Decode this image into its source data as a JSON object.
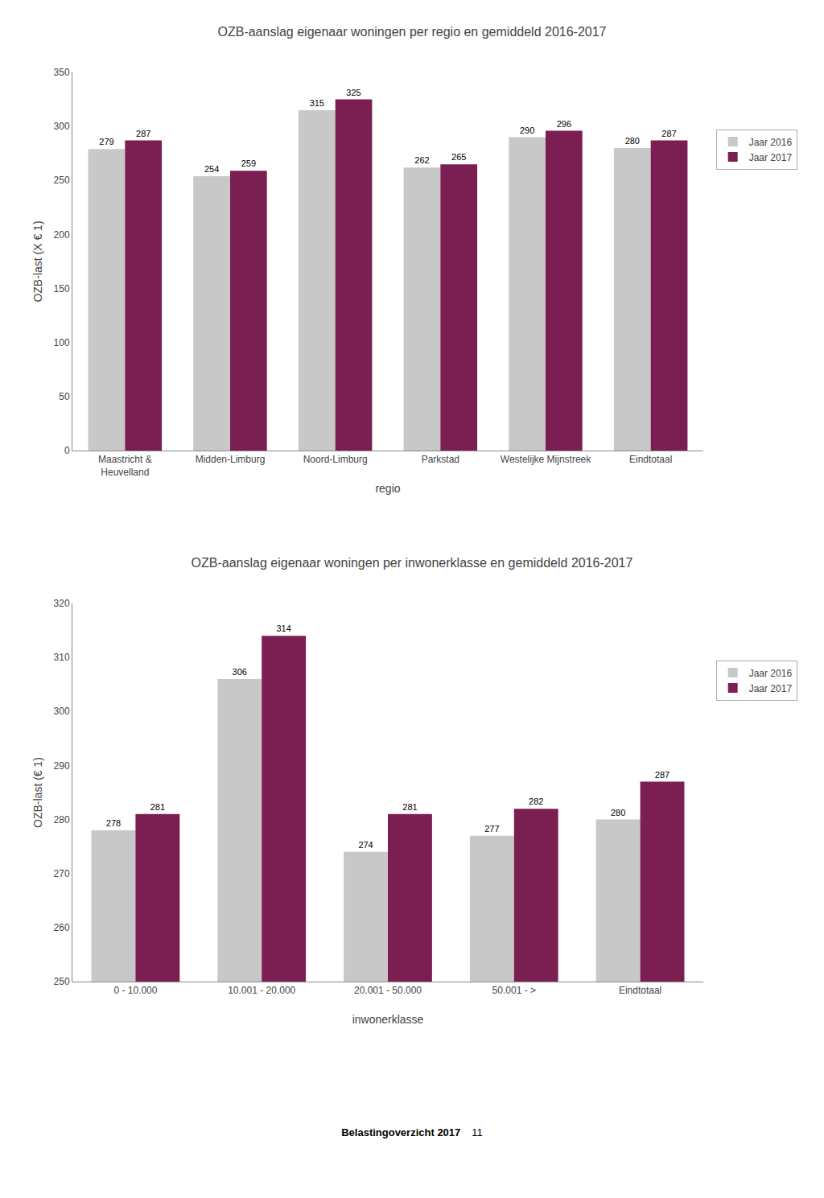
{
  "chart_data": [
    {
      "type": "bar",
      "title": "OZB-aanslag eigenaar woningen per regio en gemiddeld 2016-2017",
      "categories": [
        "Maastricht &\nHeuvelland",
        "Midden-Limburg",
        "Noord-Limburg",
        "Parkstad",
        "Westelijke Mijnstreek",
        "Eindtotaal"
      ],
      "series": [
        {
          "name": "Jaar 2016",
          "color": "#c8c8c8",
          "values": [
            279,
            254,
            315,
            262,
            290,
            280
          ]
        },
        {
          "name": "Jaar 2017",
          "color": "#7b1f52",
          "values": [
            287,
            259,
            325,
            265,
            296,
            287
          ]
        }
      ],
      "xlabel": "regio",
      "ylabel": "OZB-last (X € 1)",
      "ylim": [
        0,
        350
      ],
      "yticks": [
        0,
        50,
        100,
        150,
        200,
        250,
        300,
        350
      ],
      "grid": false,
      "legend": "right",
      "data_labels": true
    },
    {
      "type": "bar",
      "title": "OZB-aanslag eigenaar woningen per inwonerklasse en gemiddeld 2016-2017",
      "categories": [
        "0 - 10.000",
        "10.001 - 20.000",
        "20.001 - 50.000",
        "50.001 - >",
        "Eindtotaal"
      ],
      "series": [
        {
          "name": "Jaar 2016",
          "color": "#c8c8c8",
          "values": [
            278,
            306,
            274,
            277,
            280
          ]
        },
        {
          "name": "Jaar 2017",
          "color": "#7b1f52",
          "values": [
            281,
            314,
            281,
            282,
            287
          ]
        }
      ],
      "xlabel": "inwonerklasse",
      "ylabel": "OZB-last (€ 1)",
      "ylim": [
        250,
        320
      ],
      "yticks": [
        250,
        260,
        270,
        280,
        290,
        300,
        310,
        320
      ],
      "grid": false,
      "legend": "right",
      "data_labels": true,
      "annotations": [
        "Belastingoverzicht 2017",
        "11"
      ]
    }
  ]
}
